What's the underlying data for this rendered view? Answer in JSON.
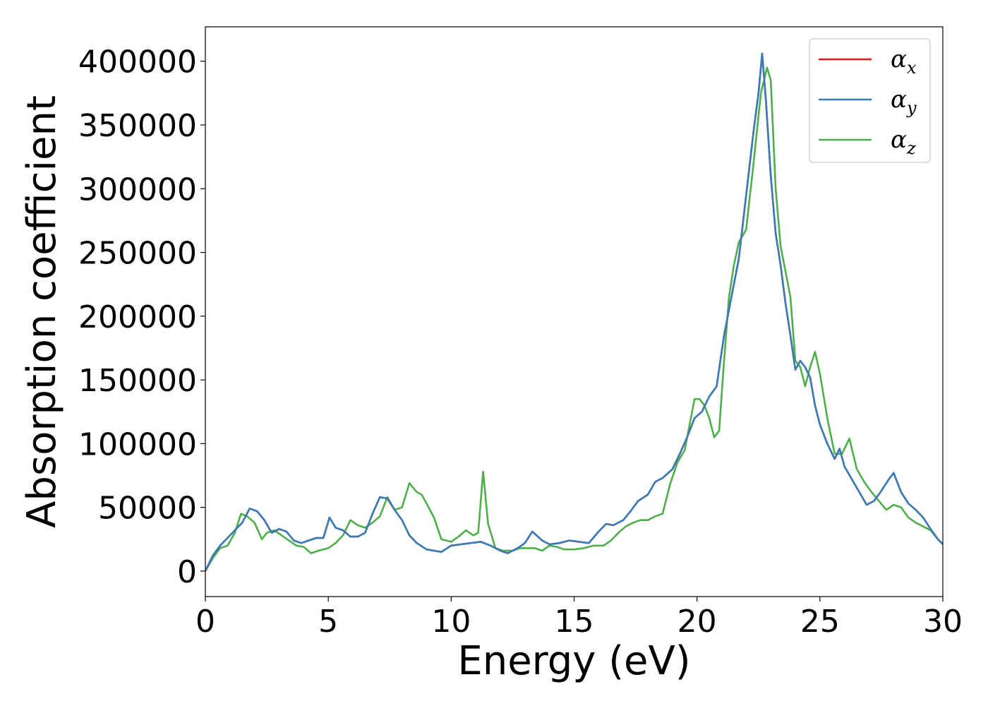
{
  "chart_data": {
    "type": "line",
    "title": "",
    "xlabel": "Energy (eV)",
    "ylabel": "Absorption coefficient",
    "xlim": [
      0,
      30
    ],
    "ylim": [
      -20000,
      427000
    ],
    "xticks": [
      0,
      5,
      10,
      15,
      20,
      25,
      30
    ],
    "xtick_labels": [
      "0",
      "5",
      "10",
      "15",
      "20",
      "25",
      "30"
    ],
    "yticks": [
      0,
      50000,
      100000,
      150000,
      200000,
      250000,
      300000,
      350000,
      400000
    ],
    "ytick_labels": [
      "0",
      "50000",
      "100000",
      "150000",
      "200000",
      "250000",
      "300000",
      "350000",
      "400000"
    ],
    "grid": false,
    "legend_position": "top-right",
    "series": [
      {
        "name": "α",
        "subscript": "x",
        "color": "#e41a1c",
        "x": [
          0,
          0.3,
          0.6,
          0.9,
          1.2,
          1.5,
          1.8,
          2.1,
          2.4,
          2.7,
          3.0,
          3.3,
          3.6,
          3.9,
          4.2,
          4.5,
          4.8,
          5.05,
          5.3,
          5.6,
          5.9,
          6.2,
          6.5,
          6.8,
          7.1,
          7.4,
          7.7,
          8.0,
          8.3,
          8.6,
          9.0,
          9.3,
          9.6,
          10.0,
          10.4,
          10.8,
          11.2,
          11.6,
          12.0,
          12.3,
          12.7,
          13.0,
          13.3,
          13.7,
          14.0,
          14.4,
          14.8,
          15.2,
          15.6,
          16.0,
          16.3,
          16.6,
          17.0,
          17.3,
          17.6,
          18.0,
          18.3,
          18.6,
          19.0,
          19.3,
          19.6,
          19.9,
          20.2,
          20.5,
          20.8,
          21.1,
          21.4,
          21.7,
          22.0,
          22.3,
          22.5,
          22.65,
          22.8,
          23.0,
          23.2,
          23.4,
          23.6,
          23.8,
          24.0,
          24.2,
          24.4,
          24.6,
          24.8,
          25.0,
          25.3,
          25.6,
          25.8,
          26.0,
          26.3,
          26.6,
          26.9,
          27.2,
          27.5,
          27.8,
          28.0,
          28.3,
          28.6,
          28.9,
          29.2,
          29.5,
          29.8,
          30.0
        ],
        "values": [
          0,
          12000,
          20000,
          26000,
          32000,
          38000,
          49000,
          47000,
          40000,
          30000,
          33000,
          31000,
          24000,
          22000,
          24000,
          26000,
          26000,
          42000,
          34000,
          32000,
          27000,
          27000,
          30000,
          45000,
          58000,
          57000,
          48000,
          40000,
          28000,
          22000,
          17000,
          16000,
          15000,
          20000,
          21000,
          22000,
          23000,
          20000,
          16000,
          14000,
          18000,
          22000,
          31000,
          24000,
          21000,
          22000,
          24000,
          23000,
          22000,
          31000,
          37000,
          36000,
          40000,
          47000,
          55000,
          60000,
          70000,
          73000,
          80000,
          92000,
          105000,
          120000,
          125000,
          137000,
          145000,
          185000,
          215000,
          245000,
          295000,
          345000,
          375000,
          406000,
          370000,
          310000,
          265000,
          240000,
          210000,
          185000,
          158000,
          165000,
          160000,
          152000,
          130000,
          115000,
          100000,
          88000,
          96000,
          82000,
          72000,
          62000,
          52000,
          55000,
          63000,
          72000,
          77000,
          62000,
          53000,
          48000,
          42000,
          33000,
          25000,
          21000
        ]
      },
      {
        "name": "α",
        "subscript": "y",
        "color": "#377eb8",
        "x": [
          0,
          0.3,
          0.6,
          0.9,
          1.2,
          1.5,
          1.8,
          2.1,
          2.4,
          2.7,
          3.0,
          3.3,
          3.6,
          3.9,
          4.2,
          4.5,
          4.8,
          5.05,
          5.3,
          5.6,
          5.9,
          6.2,
          6.5,
          6.8,
          7.1,
          7.4,
          7.7,
          8.0,
          8.3,
          8.6,
          9.0,
          9.3,
          9.6,
          10.0,
          10.4,
          10.8,
          11.2,
          11.6,
          12.0,
          12.3,
          12.7,
          13.0,
          13.3,
          13.7,
          14.0,
          14.4,
          14.8,
          15.2,
          15.6,
          16.0,
          16.3,
          16.6,
          17.0,
          17.3,
          17.6,
          18.0,
          18.3,
          18.6,
          19.0,
          19.3,
          19.6,
          19.9,
          20.2,
          20.5,
          20.8,
          21.1,
          21.4,
          21.7,
          22.0,
          22.3,
          22.5,
          22.65,
          22.8,
          23.0,
          23.2,
          23.4,
          23.6,
          23.8,
          24.0,
          24.2,
          24.4,
          24.6,
          24.8,
          25.0,
          25.3,
          25.6,
          25.8,
          26.0,
          26.3,
          26.6,
          26.9,
          27.2,
          27.5,
          27.8,
          28.0,
          28.3,
          28.6,
          28.9,
          29.2,
          29.5,
          29.8,
          30.0
        ],
        "values": [
          0,
          12000,
          20000,
          26000,
          32000,
          38000,
          49000,
          47000,
          40000,
          30000,
          33000,
          31000,
          24000,
          22000,
          24000,
          26000,
          26000,
          42000,
          34000,
          32000,
          27000,
          27000,
          30000,
          45000,
          58000,
          57000,
          48000,
          40000,
          28000,
          22000,
          17000,
          16000,
          15000,
          20000,
          21000,
          22000,
          23000,
          20000,
          16000,
          14000,
          18000,
          22000,
          31000,
          24000,
          21000,
          22000,
          24000,
          23000,
          22000,
          31000,
          37000,
          36000,
          40000,
          47000,
          55000,
          60000,
          70000,
          73000,
          80000,
          92000,
          105000,
          120000,
          125000,
          137000,
          145000,
          185000,
          215000,
          245000,
          295000,
          345000,
          375000,
          406000,
          370000,
          310000,
          265000,
          240000,
          210000,
          185000,
          158000,
          165000,
          160000,
          152000,
          130000,
          115000,
          100000,
          88000,
          96000,
          82000,
          72000,
          62000,
          52000,
          55000,
          63000,
          72000,
          77000,
          62000,
          53000,
          48000,
          42000,
          33000,
          25000,
          21000
        ]
      },
      {
        "name": "α",
        "subscript": "z",
        "color": "#4daf4a",
        "x": [
          0,
          0.3,
          0.6,
          0.9,
          1.2,
          1.45,
          1.7,
          2.0,
          2.3,
          2.5,
          2.8,
          3.1,
          3.4,
          3.7,
          4.0,
          4.3,
          4.6,
          5.0,
          5.3,
          5.6,
          5.9,
          6.2,
          6.5,
          6.8,
          7.1,
          7.4,
          7.7,
          8.0,
          8.3,
          8.6,
          8.8,
          9.0,
          9.3,
          9.6,
          10.0,
          10.3,
          10.6,
          10.9,
          11.1,
          11.3,
          11.5,
          11.8,
          12.1,
          12.5,
          12.8,
          13.1,
          13.4,
          13.7,
          14.0,
          14.3,
          14.6,
          15.0,
          15.4,
          15.8,
          16.2,
          16.5,
          16.8,
          17.1,
          17.4,
          17.7,
          18.0,
          18.3,
          18.6,
          18.9,
          19.2,
          19.5,
          19.7,
          19.9,
          20.1,
          20.3,
          20.5,
          20.7,
          20.9,
          21.1,
          21.3,
          21.5,
          21.7,
          22.0,
          22.3,
          22.6,
          22.85,
          23.0,
          23.2,
          23.4,
          23.6,
          23.8,
          24.0,
          24.2,
          24.4,
          24.6,
          24.8,
          25.0,
          25.3,
          25.6,
          25.9,
          26.2,
          26.5,
          26.8,
          27.1,
          27.4,
          27.7,
          28.0,
          28.3,
          28.6,
          28.9,
          29.2,
          29.5,
          29.8,
          30.0
        ],
        "values": [
          0,
          10000,
          18000,
          20000,
          30000,
          45000,
          43000,
          38000,
          25000,
          30000,
          32000,
          28000,
          24000,
          20000,
          19000,
          14000,
          16000,
          18000,
          22000,
          28000,
          40000,
          36000,
          34000,
          38000,
          43000,
          58000,
          48000,
          50000,
          69000,
          62000,
          60000,
          53000,
          42000,
          25000,
          23000,
          27000,
          32000,
          28000,
          30000,
          78000,
          37000,
          18000,
          16000,
          16000,
          18000,
          18000,
          18000,
          16000,
          20000,
          19000,
          17000,
          17000,
          18000,
          20000,
          20000,
          24000,
          30000,
          35000,
          38000,
          40000,
          40000,
          43000,
          45000,
          68000,
          85000,
          95000,
          115000,
          135000,
          135000,
          130000,
          120000,
          105000,
          110000,
          165000,
          215000,
          240000,
          258000,
          268000,
          320000,
          375000,
          395000,
          385000,
          300000,
          255000,
          235000,
          215000,
          165000,
          160000,
          145000,
          160000,
          172000,
          155000,
          120000,
          92000,
          92000,
          104000,
          80000,
          70000,
          62000,
          55000,
          48000,
          52000,
          50000,
          42000,
          38000,
          35000,
          32000,
          25000,
          21000
        ]
      }
    ]
  }
}
